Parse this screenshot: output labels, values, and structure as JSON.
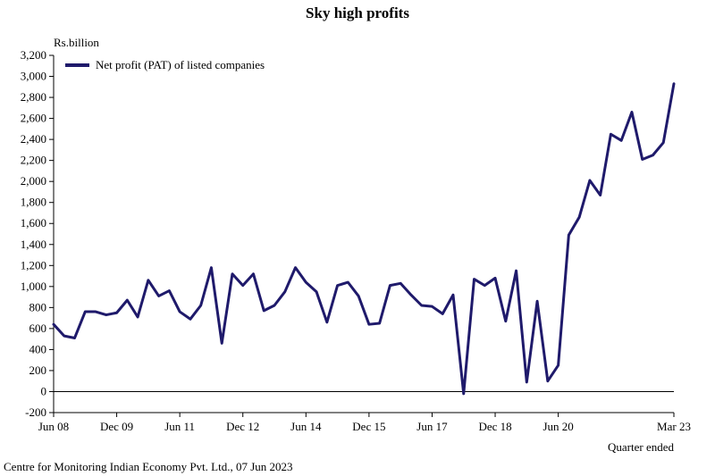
{
  "chart_data": {
    "type": "line",
    "title": "Sky high profits",
    "ylabel": "Rs.billion",
    "xlabel": "Quarter ended",
    "source": "Centre for Monitoring Indian Economy Pvt. Ltd., 07 Jun 2023",
    "ylim": [
      -200,
      3200
    ],
    "yticks": [
      -200,
      0,
      200,
      400,
      600,
      800,
      1000,
      1200,
      1400,
      1600,
      1800,
      2000,
      2200,
      2400,
      2600,
      2800,
      3000,
      3200
    ],
    "ytick_labels": [
      "-200",
      "0",
      "200",
      "400",
      "600",
      "800",
      "1,000",
      "1,200",
      "1,400",
      "1,600",
      "1,800",
      "2,000",
      "2,200",
      "2,400",
      "2,600",
      "2,800",
      "3,000",
      "3,200"
    ],
    "xticks": [
      {
        "label": "Jun 08",
        "index": 0
      },
      {
        "label": "Dec 09",
        "index": 6
      },
      {
        "label": "Jun 11",
        "index": 12
      },
      {
        "label": "Dec 12",
        "index": 18
      },
      {
        "label": "Jun 14",
        "index": 24
      },
      {
        "label": "Dec 15",
        "index": 30
      },
      {
        "label": "Jun 17",
        "index": 36
      },
      {
        "label": "Dec 18",
        "index": 42
      },
      {
        "label": "Jun 20",
        "index": 48
      },
      {
        "label": "Mar 23",
        "index": 59
      }
    ],
    "legend_position": "top-left",
    "series": [
      {
        "name": "Net profit (PAT) of listed companies",
        "color": "#1f1a6b",
        "values": [
          640,
          530,
          510,
          760,
          760,
          730,
          750,
          870,
          710,
          1060,
          910,
          960,
          760,
          690,
          820,
          1180,
          460,
          1120,
          1010,
          1120,
          770,
          820,
          950,
          1180,
          1040,
          950,
          660,
          1010,
          1040,
          910,
          640,
          650,
          1010,
          1030,
          920,
          820,
          810,
          740,
          920,
          -20,
          1070,
          1010,
          1080,
          670,
          1150,
          90,
          860,
          100,
          250,
          1490,
          1660,
          2010,
          1870,
          2450,
          2390,
          2660,
          2210,
          2250,
          2370,
          2930
        ]
      }
    ]
  }
}
